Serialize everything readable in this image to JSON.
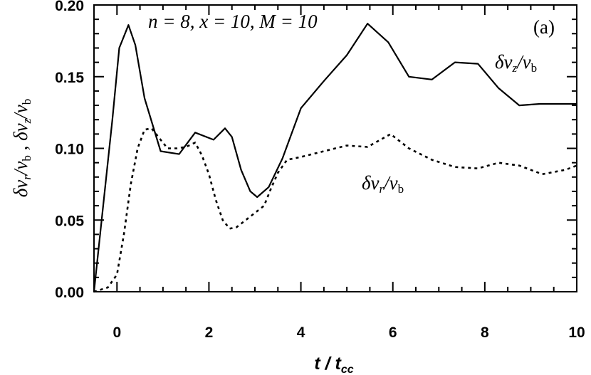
{
  "chart_data": {
    "type": "line",
    "panel_label": "(a)",
    "parameters_label": "n = 8, x = 10, M = 10",
    "xlabel": {
      "main": "t",
      "sep": " / ",
      "main2": "t",
      "sub": "cc"
    },
    "ylabel": {
      "a": "δv",
      "a_sub": "r",
      "a_den": "/v",
      "a_den_sub": "b",
      "sep": " ,  ",
      "b": "δv",
      "b_sub": "z",
      "b_den": "/v",
      "b_den_sub": "b"
    },
    "xlim": [
      -0.5,
      10
    ],
    "ylim": [
      0,
      0.2
    ],
    "xticks": [
      0,
      2,
      4,
      6,
      8,
      10
    ],
    "xtick_labels": [
      "0",
      "2",
      "4",
      "6",
      "8",
      "10"
    ],
    "yticks": [
      0,
      0.05,
      0.1,
      0.15,
      0.2
    ],
    "ytick_labels": [
      "0.00",
      "0.05",
      "0.10",
      "0.15",
      "0.20"
    ],
    "series": [
      {
        "key": "vz",
        "style": "solid",
        "label": {
          "main": "δv",
          "sub": "z",
          "den": "/v",
          "den_sub": "b"
        },
        "x": [
          -0.5,
          -0.1,
          0.05,
          0.25,
          0.4,
          0.6,
          0.95,
          1.35,
          1.7,
          2.1,
          2.35,
          2.5,
          2.7,
          2.9,
          3.05,
          3.3,
          3.6,
          4.0,
          4.5,
          5.0,
          5.45,
          5.9,
          6.35,
          6.85,
          7.35,
          7.85,
          8.3,
          8.75,
          9.2,
          10.0
        ],
        "y": [
          0.0,
          0.12,
          0.17,
          0.186,
          0.172,
          0.135,
          0.098,
          0.096,
          0.111,
          0.106,
          0.114,
          0.108,
          0.085,
          0.07,
          0.066,
          0.073,
          0.093,
          0.128,
          0.147,
          0.165,
          0.187,
          0.174,
          0.15,
          0.148,
          0.16,
          0.159,
          0.142,
          0.13,
          0.131,
          0.131
        ]
      },
      {
        "key": "vr",
        "style": "dotted",
        "label": {
          "main": "δv",
          "sub": "r",
          "den": "/v",
          "den_sub": "b"
        },
        "x": [
          -0.5,
          -0.2,
          0.0,
          0.15,
          0.3,
          0.45,
          0.6,
          0.75,
          0.9,
          1.1,
          1.3,
          1.5,
          1.7,
          1.85,
          2.0,
          2.15,
          2.3,
          2.45,
          2.6,
          2.8,
          3.0,
          3.2,
          3.35,
          3.5,
          3.7,
          4.0,
          4.5,
          5.0,
          5.45,
          5.95,
          6.35,
          6.85,
          7.35,
          7.85,
          8.3,
          8.75,
          9.25,
          9.75,
          10.0
        ],
        "y": [
          0.0,
          0.003,
          0.012,
          0.04,
          0.075,
          0.1,
          0.113,
          0.114,
          0.108,
          0.1,
          0.1,
          0.101,
          0.104,
          0.095,
          0.082,
          0.064,
          0.05,
          0.044,
          0.045,
          0.05,
          0.055,
          0.06,
          0.072,
          0.083,
          0.092,
          0.094,
          0.098,
          0.102,
          0.101,
          0.11,
          0.1,
          0.092,
          0.087,
          0.086,
          0.09,
          0.088,
          0.082,
          0.085,
          0.088
        ]
      }
    ]
  }
}
